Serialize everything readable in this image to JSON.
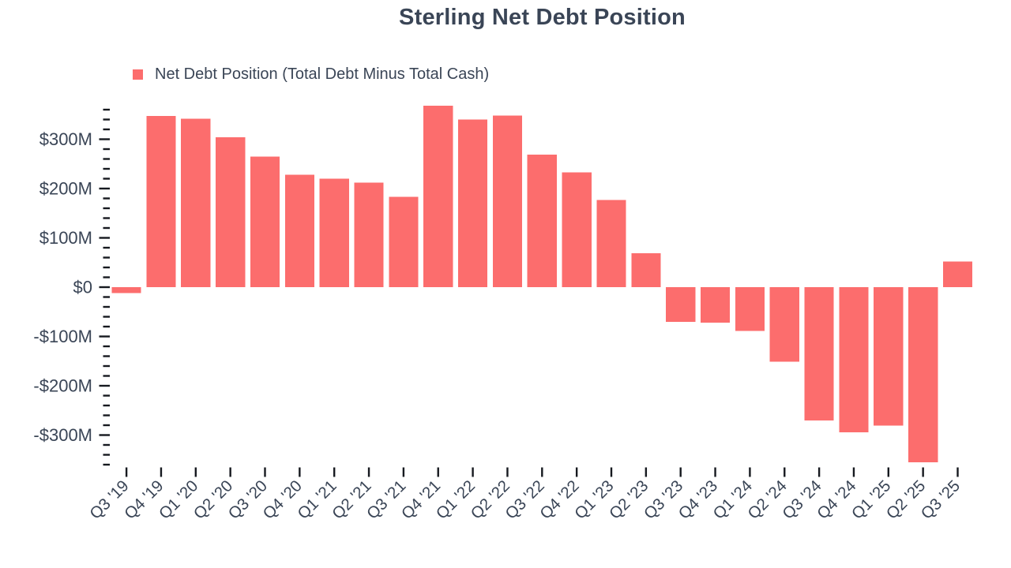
{
  "chart_data": {
    "type": "bar",
    "title": "Sterling Net Debt Position",
    "series_name": "Net Debt Position (Total Debt Minus Total Cash)",
    "legend": {
      "label": "Net Debt Position (Total Debt Minus Total Cash)",
      "position": "top-left"
    },
    "value_unit": "USD millions",
    "categories": [
      "Q3 '19",
      "Q4 '19",
      "Q1 '20",
      "Q2 '20",
      "Q3 '20",
      "Q4 '20",
      "Q1 '21",
      "Q2 '21",
      "Q3 '21",
      "Q4 '21",
      "Q1 '22",
      "Q2 '22",
      "Q3 '22",
      "Q4 '22",
      "Q1 '23",
      "Q2 '23",
      "Q3 '23",
      "Q4 '23",
      "Q1 '24",
      "Q2 '24",
      "Q3 '24",
      "Q4 '24",
      "Q1 '25",
      "Q2 '25",
      "Q3 '25"
    ],
    "values": [
      -12,
      347,
      342,
      304,
      265,
      228,
      220,
      212,
      183,
      368,
      340,
      348,
      269,
      233,
      177,
      69,
      -70,
      -72,
      -89,
      -151,
      -270,
      -294,
      -281,
      -355,
      52
    ],
    "y_axis": {
      "min": -360,
      "max": 360,
      "minor_tick_step": 20,
      "major_tick_step": 100,
      "tick_labels": [
        {
          "value": 300,
          "label": "$300M"
        },
        {
          "value": 200,
          "label": "$200M"
        },
        {
          "value": 100,
          "label": "$100M"
        },
        {
          "value": 0,
          "label": "$0"
        },
        {
          "value": -100,
          "label": "-$100M"
        },
        {
          "value": -200,
          "label": "-$200M"
        },
        {
          "value": -300,
          "label": "-$300M"
        }
      ]
    },
    "grid": false,
    "colors": {
      "bar": "#FC6D6D",
      "text": "#3A4556",
      "tick": "#16191F",
      "background": "#FFFFFF"
    }
  }
}
